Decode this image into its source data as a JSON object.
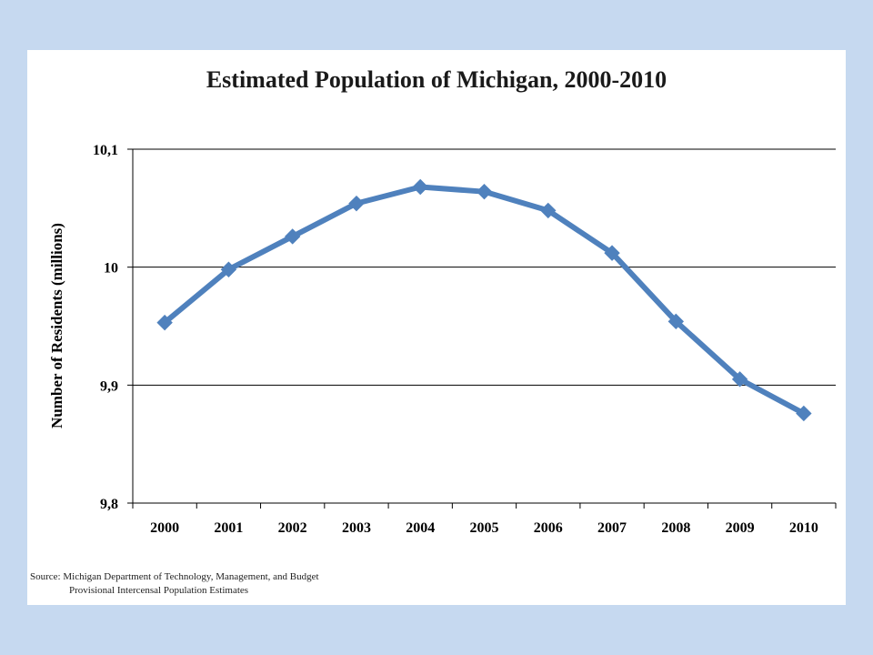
{
  "chart_data": {
    "type": "line",
    "title": "Estimated Population of Michigan, 2000-2010",
    "xlabel": "",
    "ylabel": "Number of Residents (millions)",
    "categories": [
      "2000",
      "2001",
      "2002",
      "2003",
      "2004",
      "2005",
      "2006",
      "2007",
      "2008",
      "2009",
      "2010"
    ],
    "series": [
      {
        "values": [
          9.953,
          9.998,
          10.026,
          10.054,
          10.068,
          10.064,
          10.048,
          10.012,
          9.954,
          9.905,
          9.876
        ]
      }
    ],
    "ylim": [
      9.8,
      10.1
    ],
    "yticks": [
      9.8,
      9.9,
      10.0,
      10.1
    ],
    "ytick_labels": [
      "9,8",
      "9,9",
      "10",
      "10,1"
    ],
    "grid": true,
    "colors": {
      "line": "#4f81bd",
      "page_background": "#c6d9f0",
      "grid": "#000000"
    }
  },
  "source": {
    "line1": "Source: Michigan Department of Technology, Management, and Budget",
    "line2": "Provisional Intercensal Population Estimates"
  }
}
